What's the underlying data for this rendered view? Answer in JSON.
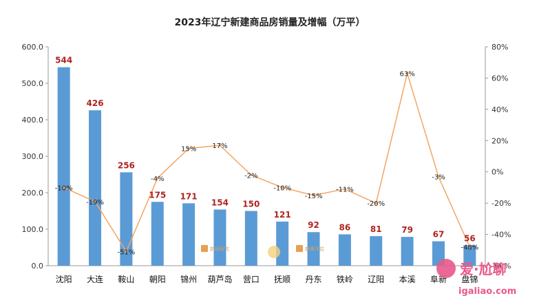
{
  "chart_data": {
    "type": "bar",
    "title": "2023年辽宁新建商品房销量及增幅（万平）",
    "categories": [
      "沈阳",
      "大连",
      "鞍山",
      "朝阳",
      "锦州",
      "葫芦岛",
      "营口",
      "抚顺",
      "丹东",
      "铁岭",
      "辽阳",
      "本溪",
      "阜新",
      "盘锦"
    ],
    "series": [
      {
        "values": [
          544,
          426,
          256,
          175,
          171,
          154,
          150,
          121,
          92,
          86,
          81,
          79,
          67,
          56
        ],
        "color": "#5b9bd5",
        "axis": "left"
      },
      {
        "values": [
          -10,
          -19,
          -51,
          -4,
          15,
          17,
          -2,
          -10,
          -15,
          -11,
          -20,
          63,
          -3,
          -48
        ],
        "color": "#f4a460",
        "axis": "right",
        "chart": "line"
      }
    ],
    "y_left": {
      "range": [
        0,
        600
      ],
      "ticks": [
        "0.0",
        "100.0",
        "200.0",
        "300.0",
        "400.0",
        "500.0",
        "600.0"
      ]
    },
    "y_right": {
      "range": [
        -60,
        80
      ],
      "ticks": [
        "-60%",
        "-40%",
        "-20%",
        "0%",
        "20%",
        "40%",
        "60%",
        "80%"
      ]
    },
    "value_labels": [
      "544",
      "426",
      "256",
      "175",
      "171",
      "154",
      "150",
      "121",
      "92",
      "86",
      "81",
      "79",
      "67",
      "56"
    ],
    "pct_labels": [
      "-10%",
      "-19%",
      "-51%",
      "-4%",
      "15%",
      "17%",
      "-2%",
      "-10%",
      "-15%",
      "-11%",
      "-20%",
      "63%",
      "-3%",
      "-48%"
    ],
    "grid": false,
    "legend": "none"
  },
  "watermarks": [
    "新峰研究",
    "新峰评估",
    "爱·尬聊",
    "igaliao.com"
  ],
  "colors": {
    "bar": "#5b9bd5",
    "line": "#f4a460",
    "value_label": "#b22222"
  }
}
